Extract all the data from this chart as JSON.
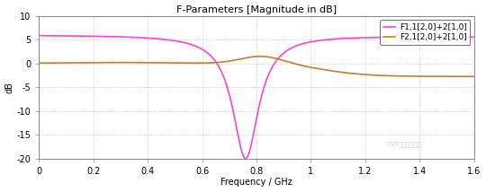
{
  "title": "F-Parameters [Magnitude in dB]",
  "xlabel": "Frequency / GHz",
  "ylabel": "dB",
  "xlim": [
    0,
    1.6
  ],
  "ylim": [
    -20,
    10
  ],
  "yticks": [
    -20,
    -15,
    -10,
    -5,
    0,
    5,
    10
  ],
  "xticks": [
    0,
    0.2,
    0.4,
    0.6,
    0.8,
    1.0,
    1.2,
    1.4,
    1.6
  ],
  "legend": [
    "F1,1[2,0]+2[1,0]",
    "F2,1[2,0]+2[1,0]"
  ],
  "colors": [
    "#FF44CC",
    "#C08030"
  ],
  "bg_color": "#FFFFFF",
  "plot_bg": "#FFFFFF",
  "grid_color": "#BBBBBB",
  "spine_color": "#888888",
  "title_fontsize": 8,
  "label_fontsize": 7,
  "tick_fontsize": 7,
  "legend_fontsize": 6.5,
  "linewidth": 1.2
}
